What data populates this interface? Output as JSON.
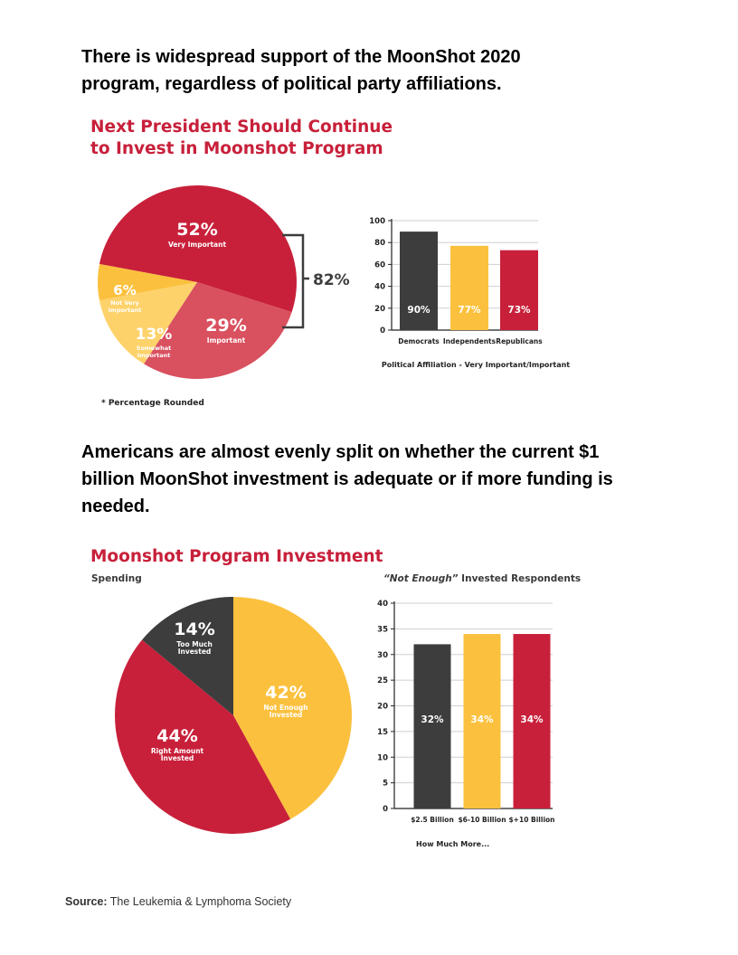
{
  "headings": {
    "first": "There is widespread support of the MoonShot 2020 program, regardless of political party affiliations.",
    "second": "Americans are almost evenly split on whether the current $1 billion MoonShot investment is adequate or if more funding is needed."
  },
  "colors": {
    "red": "#c8203a",
    "pink": "#d9505f",
    "yellow": "#fbc13e",
    "light_yellow": "#fdd26a",
    "dark": "#3d3d3d"
  },
  "chart1": {
    "title_line1": "Next President Should Continue",
    "title_line2": "to Invest in Moonshot Program",
    "bracket_label": "82%",
    "footnote": "* Percentage Rounded"
  },
  "chart3": {
    "title": "Moonshot Program Investment"
  },
  "chart_data": [
    {
      "type": "pie",
      "title": "Next President Should Continue to Invest in Moonshot Program",
      "slices": [
        {
          "label_lines": [
            "Very Important"
          ],
          "value": 52,
          "value_text": "52%",
          "color": "#c8203a"
        },
        {
          "label_lines": [
            "Important"
          ],
          "value": 29,
          "value_text": "29%",
          "color": "#d9505f"
        },
        {
          "label_lines": [
            "Somewhat",
            "Important"
          ],
          "value": 13,
          "value_text": "13%",
          "color": "#fdd26a"
        },
        {
          "label_lines": [
            "Not Very",
            "Important"
          ],
          "value": 6,
          "value_text": "6%",
          "color": "#fbc13e"
        }
      ]
    },
    {
      "type": "bar",
      "categories": [
        "Democrats",
        "Independents",
        "Republicans"
      ],
      "values": [
        90,
        77,
        73
      ],
      "value_labels": [
        "90%",
        "77%",
        "73%"
      ],
      "colors": [
        "#3d3d3d",
        "#fbc13e",
        "#c8203a"
      ],
      "xlabel": "Political Affiliation - Very Important/Important",
      "ylim": [
        0,
        100
      ],
      "yticks": [
        0,
        20,
        40,
        60,
        80,
        100
      ],
      "grid": true
    },
    {
      "type": "pie",
      "title": "Moonshot Program Investment",
      "subtitle": "Spending",
      "slices": [
        {
          "label_lines": [
            "Not Enough",
            "Invested"
          ],
          "value": 42,
          "value_text": "42%",
          "color": "#fbc13e"
        },
        {
          "label_lines": [
            "Right Amount",
            "Invested"
          ],
          "value": 44,
          "value_text": "44%",
          "color": "#c8203a"
        },
        {
          "label_lines": [
            "Too Much",
            "Invested"
          ],
          "value": 14,
          "value_text": "14%",
          "color": "#3d3d3d"
        }
      ]
    },
    {
      "type": "bar",
      "title_italic": "“Not Enough”",
      "title_rest": " Invested Respondents",
      "categories": [
        "$2.5 Billion",
        "$6-10 Billion",
        "$+10 Billion"
      ],
      "values": [
        32,
        34,
        34
      ],
      "value_labels": [
        "32%",
        "34%",
        "34%"
      ],
      "colors": [
        "#3d3d3d",
        "#fbc13e",
        "#c8203a"
      ],
      "xlabel": "How Much More...",
      "ylim": [
        0,
        40
      ],
      "yticks": [
        0,
        5,
        10,
        15,
        20,
        25,
        30,
        35,
        40
      ],
      "grid": true
    }
  ],
  "source": {
    "label": "Source:",
    "text": "The Leukemia & Lymphoma Society"
  }
}
